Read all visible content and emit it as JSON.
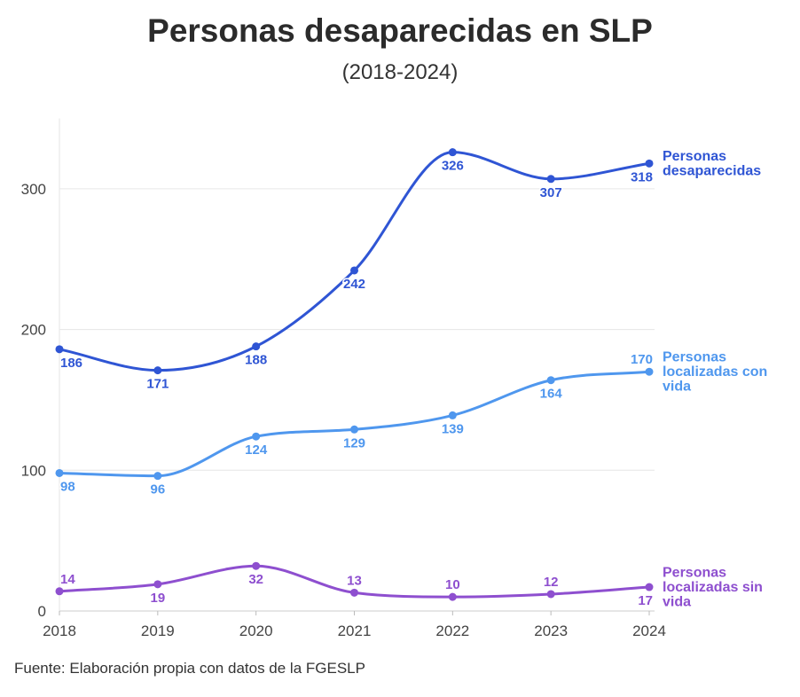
{
  "title": "Personas desaparecidas en SLP",
  "subtitle": "(2018-2024)",
  "source": "Fuente: Elaboración propia con datos de la FGESLP",
  "chart_data": {
    "type": "line",
    "x": [
      "2018",
      "2019",
      "2020",
      "2021",
      "2022",
      "2023",
      "2024"
    ],
    "ylim": [
      0,
      350
    ],
    "yticks": [
      0,
      100,
      200,
      300
    ],
    "grid": true,
    "legend": "direct labels at right end",
    "series": [
      {
        "name": "Personas desaparecidas",
        "label_lines": [
          "Personas",
          "desaparecidas"
        ],
        "color": "#2f55d4",
        "values": [
          186,
          171,
          188,
          242,
          326,
          307,
          318
        ],
        "label_pos": [
          "below",
          "below",
          "below",
          "below",
          "below",
          "below",
          "below"
        ]
      },
      {
        "name": "Personas localizadas con vida",
        "label_lines": [
          "Personas",
          "localizadas con",
          "vida"
        ],
        "color": "#4f97ee",
        "values": [
          98,
          96,
          124,
          129,
          139,
          164,
          170
        ],
        "label_pos": [
          "below",
          "below",
          "below",
          "below",
          "below",
          "below",
          "above"
        ]
      },
      {
        "name": "Personas localizadas sin vida",
        "label_lines": [
          "Personas",
          "localizadas sin",
          "vida"
        ],
        "color": "#8e4fcf",
        "values": [
          14,
          19,
          32,
          13,
          10,
          12,
          17
        ],
        "label_pos": [
          "above",
          "below",
          "below",
          "above",
          "above",
          "above",
          "below"
        ]
      }
    ]
  }
}
